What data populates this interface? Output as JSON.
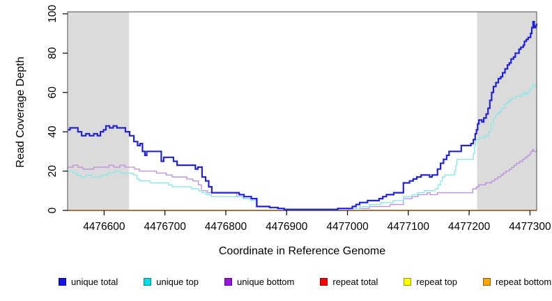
{
  "figure": {
    "x_axis_label": "Coordinate in Reference Genome",
    "y_axis_label": "Read Coverage Depth"
  },
  "chart_data": {
    "type": "line",
    "step": true,
    "title": "",
    "xlabel": "Coordinate in Reference Genome",
    "ylabel": "Read Coverage Depth",
    "xlim": [
      4476540,
      4477311
    ],
    "ylim": [
      0,
      101
    ],
    "x_ticks": [
      4476600,
      4476700,
      4476800,
      4476900,
      4477000,
      4477100,
      4477200,
      4477300
    ],
    "y_ticks": [
      0,
      20,
      40,
      60,
      80,
      100
    ],
    "grid": false,
    "legend_position": "bottom",
    "background_color": "#FFFFFF",
    "highlight_band_color": "#DBDBDB",
    "highlight_regions": [
      {
        "x0": 4476540,
        "x1": 4476641
      },
      {
        "x0": 4477213,
        "x1": 4477311
      }
    ],
    "series": [
      {
        "name": "unique total",
        "line_color": "#2121D9",
        "swatch_fill": "#1414E8",
        "swatch_border": "#00008B",
        "line_width": 2.2,
        "points": [
          [
            4476540,
            41
          ],
          [
            4476544,
            42
          ],
          [
            4476557,
            40
          ],
          [
            4476563,
            38
          ],
          [
            4476570,
            39
          ],
          [
            4476576,
            38
          ],
          [
            4476583,
            39
          ],
          [
            4476589,
            38
          ],
          [
            4476594,
            40
          ],
          [
            4476599,
            41
          ],
          [
            4476603,
            43
          ],
          [
            4476609,
            42
          ],
          [
            4476615,
            43
          ],
          [
            4476621,
            42
          ],
          [
            4476635,
            40
          ],
          [
            4476642,
            38
          ],
          [
            4476649,
            35
          ],
          [
            4476655,
            33
          ],
          [
            4476659,
            34
          ],
          [
            4476663,
            30
          ],
          [
            4476667,
            28
          ],
          [
            4476670,
            30
          ],
          [
            4476694,
            25
          ],
          [
            4476698,
            27
          ],
          [
            4476714,
            25
          ],
          [
            4476720,
            23
          ],
          [
            4476745,
            23
          ],
          [
            4476750,
            21
          ],
          [
            4476754,
            22
          ],
          [
            4476761,
            17
          ],
          [
            4476767,
            15
          ],
          [
            4476772,
            12
          ],
          [
            4476777,
            9
          ],
          [
            4476822,
            8
          ],
          [
            4476830,
            7
          ],
          [
            4476842,
            6
          ],
          [
            4476851,
            2
          ],
          [
            4476872,
            1.5
          ],
          [
            4476886,
            1
          ],
          [
            4476896,
            0.5
          ],
          [
            4476984,
            1
          ],
          [
            4477004,
            1
          ],
          [
            4477008,
            2
          ],
          [
            4477014,
            3
          ],
          [
            4477020,
            4
          ],
          [
            4477033,
            5
          ],
          [
            4477045,
            5
          ],
          [
            4477052,
            6
          ],
          [
            4477058,
            7
          ],
          [
            4477064,
            8
          ],
          [
            4477070,
            8
          ],
          [
            4477076,
            9
          ],
          [
            4477092,
            14
          ],
          [
            4477102,
            15
          ],
          [
            4477108,
            16
          ],
          [
            4477114,
            17
          ],
          [
            4477121,
            18
          ],
          [
            4477131,
            18
          ],
          [
            4477135,
            17
          ],
          [
            4477139,
            18
          ],
          [
            4477148,
            21
          ],
          [
            4477153,
            24
          ],
          [
            4477158,
            26
          ],
          [
            4477163,
            28
          ],
          [
            4477167,
            30
          ],
          [
            4477184,
            30
          ],
          [
            4477187,
            33
          ],
          [
            4477203,
            34
          ],
          [
            4477207,
            36
          ],
          [
            4477210,
            39
          ],
          [
            4477212,
            41
          ],
          [
            4477214,
            44
          ],
          [
            4477216,
            46
          ],
          [
            4477221,
            45
          ],
          [
            4477224,
            47
          ],
          [
            4477228,
            49
          ],
          [
            4477231,
            52
          ],
          [
            4477234,
            56
          ],
          [
            4477237,
            60
          ],
          [
            4477240,
            63
          ],
          [
            4477244,
            65
          ],
          [
            4477248,
            67
          ],
          [
            4477252,
            68
          ],
          [
            4477255,
            70
          ],
          [
            4477259,
            72
          ],
          [
            4477263,
            74
          ],
          [
            4477266,
            75
          ],
          [
            4477269,
            77
          ],
          [
            4477273,
            78
          ],
          [
            4477276,
            80
          ],
          [
            4477282,
            82
          ],
          [
            4477285,
            83
          ],
          [
            4477289,
            84
          ],
          [
            4477291,
            86
          ],
          [
            4477294,
            87
          ],
          [
            4477297,
            88
          ],
          [
            4477301,
            90
          ],
          [
            4477303,
            93
          ],
          [
            4477305,
            96
          ],
          [
            4477307,
            93
          ],
          [
            4477309,
            94
          ],
          [
            4477311,
            95
          ]
        ]
      },
      {
        "name": "unique top",
        "line_color": "#8AE8E8",
        "swatch_fill": "#00E0E8",
        "swatch_border": "#008B8B",
        "line_width": 1.4,
        "points": [
          [
            4476540,
            20
          ],
          [
            4476548,
            19
          ],
          [
            4476556,
            18
          ],
          [
            4476562,
            17
          ],
          [
            4476570,
            18
          ],
          [
            4476580,
            17
          ],
          [
            4476596,
            18
          ],
          [
            4476606,
            19
          ],
          [
            4476618,
            20
          ],
          [
            4476627,
            19
          ],
          [
            4476648,
            18
          ],
          [
            4476654,
            16
          ],
          [
            4476658,
            15
          ],
          [
            4476676,
            14
          ],
          [
            4476706,
            13
          ],
          [
            4476712,
            12
          ],
          [
            4476744,
            11
          ],
          [
            4476756,
            10
          ],
          [
            4476761,
            9
          ],
          [
            4476768,
            8
          ],
          [
            4476776,
            7
          ],
          [
            4476820,
            7
          ],
          [
            4476828,
            6
          ],
          [
            4476841,
            5
          ],
          [
            4476851,
            2
          ],
          [
            4476872,
            1.5
          ],
          [
            4476886,
            1
          ],
          [
            4476896,
            0
          ],
          [
            4476988,
            1
          ],
          [
            4477020,
            2
          ],
          [
            4477036,
            3
          ],
          [
            4477055,
            4
          ],
          [
            4477075,
            5
          ],
          [
            4477092,
            7
          ],
          [
            4477106,
            8
          ],
          [
            4477115,
            9
          ],
          [
            4477126,
            10
          ],
          [
            4477144,
            11
          ],
          [
            4477149,
            13
          ],
          [
            4477153,
            15
          ],
          [
            4477156,
            17
          ],
          [
            4477160,
            18
          ],
          [
            4477176,
            20
          ],
          [
            4477178,
            23
          ],
          [
            4477180,
            26
          ],
          [
            4477207,
            29
          ],
          [
            4477209,
            33
          ],
          [
            4477211,
            36
          ],
          [
            4477216,
            37
          ],
          [
            4477226,
            38
          ],
          [
            4477232,
            40
          ],
          [
            4477236,
            44
          ],
          [
            4477240,
            47
          ],
          [
            4477244,
            49
          ],
          [
            4477248,
            50
          ],
          [
            4477253,
            52
          ],
          [
            4477258,
            54
          ],
          [
            4477262,
            55
          ],
          [
            4477266,
            56
          ],
          [
            4477270,
            57
          ],
          [
            4477276,
            58
          ],
          [
            4477286,
            59
          ],
          [
            4477290,
            60
          ],
          [
            4477293,
            59
          ],
          [
            4477296,
            60
          ],
          [
            4477300,
            62
          ],
          [
            4477304,
            64
          ],
          [
            4477308,
            63
          ],
          [
            4477311,
            64
          ]
        ]
      },
      {
        "name": "unique bottom",
        "line_color": "#BE93DD",
        "swatch_fill": "#9912E0",
        "swatch_border": "#5A0080",
        "line_width": 1.4,
        "points": [
          [
            4476540,
            22
          ],
          [
            4476549,
            23
          ],
          [
            4476557,
            22
          ],
          [
            4476565,
            21
          ],
          [
            4476583,
            22
          ],
          [
            4476608,
            23
          ],
          [
            4476616,
            22
          ],
          [
            4476626,
            23
          ],
          [
            4476634,
            22
          ],
          [
            4476650,
            21
          ],
          [
            4476658,
            20
          ],
          [
            4476686,
            19
          ],
          [
            4476702,
            18
          ],
          [
            4476712,
            17
          ],
          [
            4476736,
            16
          ],
          [
            4476746,
            15
          ],
          [
            4476755,
            13
          ],
          [
            4476760,
            10
          ],
          [
            4476770,
            9
          ],
          [
            4476812,
            9
          ],
          [
            4476818,
            7
          ],
          [
            4476829,
            6
          ],
          [
            4476850,
            2
          ],
          [
            4476872,
            1.5
          ],
          [
            4476884,
            1
          ],
          [
            4476896,
            0
          ],
          [
            4477002,
            1
          ],
          [
            4477036,
            2
          ],
          [
            4477070,
            3
          ],
          [
            4477092,
            6
          ],
          [
            4477106,
            7
          ],
          [
            4477116,
            8
          ],
          [
            4477131,
            9
          ],
          [
            4477136,
            8
          ],
          [
            4477148,
            9
          ],
          [
            4477204,
            9
          ],
          [
            4477206,
            11
          ],
          [
            4477212,
            12
          ],
          [
            4477216,
            13
          ],
          [
            4477227,
            14
          ],
          [
            4477237,
            15
          ],
          [
            4477242,
            16
          ],
          [
            4477247,
            17
          ],
          [
            4477252,
            18
          ],
          [
            4477256,
            19
          ],
          [
            4477260,
            20
          ],
          [
            4477266,
            21
          ],
          [
            4477270,
            22
          ],
          [
            4477274,
            23
          ],
          [
            4477278,
            24
          ],
          [
            4477283,
            25
          ],
          [
            4477288,
            26
          ],
          [
            4477292,
            27
          ],
          [
            4477296,
            28
          ],
          [
            4477300,
            29
          ],
          [
            4477302,
            30
          ],
          [
            4477304,
            31
          ],
          [
            4477306,
            30
          ],
          [
            4477311,
            31
          ]
        ]
      },
      {
        "name": "repeat total",
        "line_color": "#FF0000",
        "swatch_fill": "#FF0000",
        "swatch_border": "#8B0000",
        "line_width": 1.3,
        "points": [
          [
            4476540,
            0
          ],
          [
            4477311,
            0
          ]
        ]
      },
      {
        "name": "repeat top",
        "line_color": "#FFFF00",
        "swatch_fill": "#FFFF00",
        "swatch_border": "#9A9A00",
        "line_width": 1.3,
        "points": [
          [
            4476540,
            0
          ],
          [
            4477311,
            0
          ]
        ]
      },
      {
        "name": "repeat bottom",
        "line_color": "#FF9100",
        "swatch_fill": "#FFA500",
        "swatch_border": "#8B5A00",
        "line_width": 1.7,
        "points": [
          [
            4476540,
            0
          ],
          [
            4477311,
            0
          ]
        ]
      }
    ]
  }
}
